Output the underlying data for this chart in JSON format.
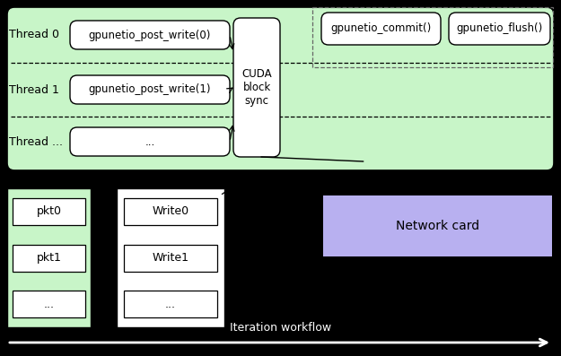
{
  "bg_color": "#000000",
  "green_light": "#c8f5c8",
  "white": "#FFFFFF",
  "lavender": "#b8b0f0",
  "thread_labels": [
    "Thread 0",
    "Thread 1",
    "Thread ..."
  ],
  "post_write_labels": [
    "gpunetio_post_write(0)",
    "gpunetio_post_write(1)",
    "..."
  ],
  "cuda_sync_label": "CUDA\nblock\nsync",
  "commit_label": "gpunetio_commit()",
  "flush_label": "gpunetio_flush()",
  "pkt_labels": [
    "pkt0",
    "pkt1",
    "..."
  ],
  "write_labels": [
    "Write0",
    "Write1",
    "..."
  ],
  "network_card_label": "Network card",
  "iteration_label": "Iteration workflow",
  "label_fontsize": 9,
  "small_fontsize": 8.5
}
